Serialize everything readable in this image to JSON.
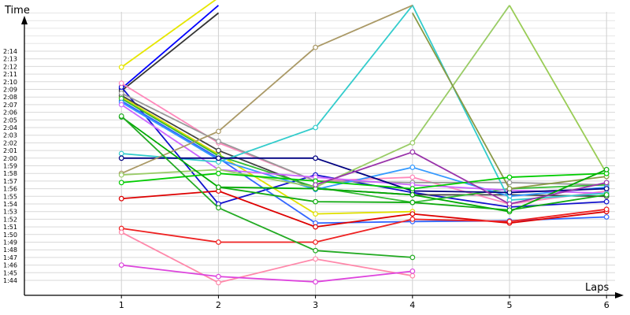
{
  "chart_data": {
    "type": "line",
    "ylabel": "Time",
    "xlabel": "Laps",
    "x": [
      1,
      2,
      3,
      4,
      5,
      6
    ],
    "xlim": [
      0,
      6
    ],
    "ylim_seconds": [
      6240,
      6862
    ],
    "y_tick_labels": [
      "1:44",
      "1:45",
      "1:46",
      "1:47",
      "1:48",
      "1:49",
      "1:50",
      "1:51",
      "1:52",
      "1:53",
      "1:54",
      "1:55",
      "1:56",
      "1:57",
      "1:58",
      "1:59",
      "2:00",
      "2:01",
      "2:02",
      "2:03",
      "2:04",
      "2:05",
      "2:06",
      "2:07",
      "2:08",
      "2:09",
      "2:10",
      "2:11",
      "2:12",
      "2:13",
      "2:14"
    ],
    "y_tick_values": [
      104,
      105,
      106,
      107,
      108,
      109,
      110,
      111,
      112,
      113,
      114,
      115,
      116,
      117,
      118,
      119,
      120,
      121,
      122,
      123,
      124,
      125,
      126,
      127,
      128,
      129,
      130,
      131,
      132,
      133,
      134
    ],
    "grid": true,
    "series": [
      {
        "color": "#e6e600",
        "values": [
          131.9,
          141.0,
          null,
          null,
          null,
          null
        ]
      },
      {
        "color": "#0000ff",
        "values": [
          129.1,
          140.0,
          null,
          null,
          null,
          null
        ]
      },
      {
        "color": "#333333",
        "values": [
          128.8,
          139.0,
          null,
          null,
          null,
          null
        ]
      },
      {
        "color": "#1111cc",
        "values": [
          129.3,
          114.0,
          117.8,
          115.5,
          113.6,
          114.3
        ]
      },
      {
        "color": "#e0e000",
        "values": [
          128.0,
          120.5,
          112.7,
          113.0,
          null,
          null
        ]
      },
      {
        "color": "#3366ff",
        "values": [
          127.5,
          120.0,
          111.5,
          111.7,
          111.8,
          112.3
        ]
      },
      {
        "color": "#444444",
        "values": [
          128.2,
          121.0,
          116.0,
          115.2,
          115.2,
          115.0
        ]
      },
      {
        "color": "#ff88bb",
        "values": [
          129.8,
          122.0,
          117.0,
          117.5,
          114.0,
          115.7
        ]
      },
      {
        "color": "#999999",
        "values": [
          128.5,
          122.2,
          117.0,
          116.8,
          116.8,
          116.5
        ]
      },
      {
        "color": "#33bb33",
        "values": [
          127.8,
          120.3,
          116.2,
          114.2,
          116.0,
          116.5
        ]
      },
      {
        "color": "#3399ff",
        "values": [
          127.3,
          119.8,
          115.9,
          118.8,
          115.0,
          116.2
        ]
      },
      {
        "color": "#cc66ff",
        "values": [
          127.0,
          118.5,
          117.5,
          116.5,
          115.8,
          115.4
        ]
      },
      {
        "color": "#33cccc",
        "values": [
          120.6,
          119.5,
          124.0,
          140.0,
          114.5,
          115.4
        ]
      },
      {
        "color": "#000080",
        "values": [
          120.0,
          120.0,
          120.0,
          115.7,
          115.5,
          116.0
        ]
      },
      {
        "color": "#aa9966",
        "values": [
          118.0,
          123.5,
          134.5,
          140.0,
          null,
          null
        ]
      },
      {
        "color": "#99cc66",
        "values": [
          117.8,
          118.5,
          116.2,
          122.0,
          140.0,
          null
        ]
      },
      {
        "color": "#889944",
        "values": [
          null,
          null,
          null,
          139.0,
          116.0,
          117.6
        ]
      },
      {
        "color": "#99cc55",
        "values": [
          null,
          null,
          null,
          null,
          140.0,
          118.0
        ]
      },
      {
        "color": "#00cc00",
        "values": [
          116.8,
          118.0,
          117.0,
          116.0,
          117.5,
          118.0
        ]
      },
      {
        "color": "#00aa00",
        "values": [
          125.4,
          116.2,
          116.0,
          115.2,
          113.0,
          118.5
        ]
      },
      {
        "color": "#dd0000",
        "values": [
          114.7,
          115.7,
          111.0,
          112.7,
          111.5,
          113.0
        ]
      },
      {
        "color": "#ee2222",
        "values": [
          110.8,
          109.0,
          109.0,
          112.0,
          111.7,
          113.3
        ]
      },
      {
        "color": "#22aa22",
        "values": [
          125.5,
          113.5,
          107.9,
          107.0,
          null,
          null
        ]
      },
      {
        "color": "#11aa11",
        "values": [
          null,
          116.2,
          114.3,
          114.2,
          113.2,
          115.2
        ]
      },
      {
        "color": "#9933aa",
        "values": [
          null,
          null,
          116.5,
          120.8,
          114.0,
          116.8
        ]
      },
      {
        "color": "#ff88aa",
        "values": [
          110.3,
          103.7,
          106.8,
          104.6,
          null,
          null
        ]
      },
      {
        "color": "#dd44dd",
        "values": [
          106.0,
          104.5,
          103.8,
          105.2,
          null,
          null
        ]
      }
    ]
  }
}
